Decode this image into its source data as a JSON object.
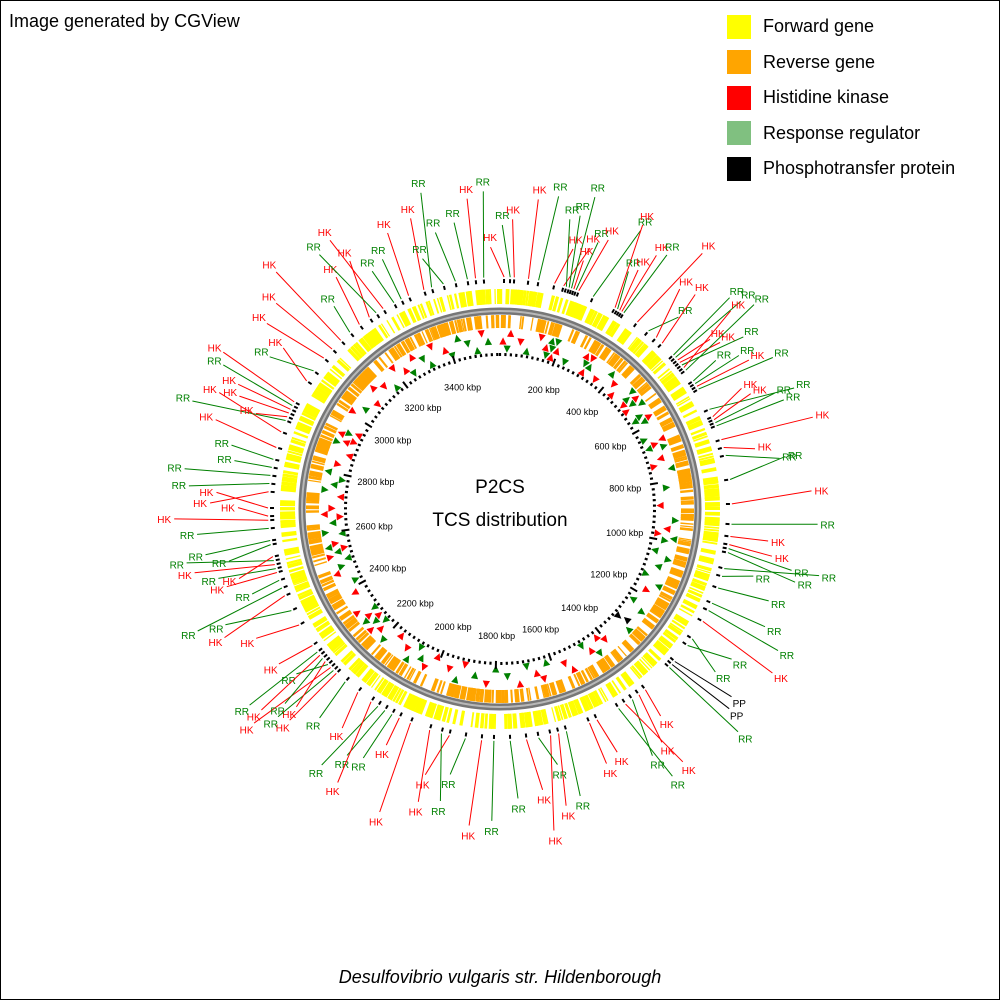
{
  "header": {
    "credit": "Image generated by CGView"
  },
  "legend": [
    {
      "label": "Forward gene",
      "color": "#ffff00"
    },
    {
      "label": "Reverse gene",
      "color": "#ffa500"
    },
    {
      "label": "Histidine kinase",
      "color": "#ff0000"
    },
    {
      "label": "Response regulator",
      "color": "#80c080"
    },
    {
      "label": "Phosphotransfer protein",
      "color": "#000000"
    }
  ],
  "center": {
    "line1": "P2CS",
    "line2": "TCS distribution"
  },
  "footer": {
    "organism": "Desulfovibrio vulgaris str. Hildenborough"
  },
  "map": {
    "genome_length_kbp": 3570,
    "scale_labels": [
      "200 kbp",
      "400 kbp",
      "600 kbp",
      "800 kbp",
      "1000 kbp",
      "1200 kbp",
      "1400 kbp",
      "1600 kbp",
      "1800 kbp",
      "2000 kbp",
      "2200 kbp",
      "2400 kbp",
      "2600 kbp",
      "2800 kbp",
      "3000 kbp",
      "3200 kbp",
      "3400 kbp"
    ],
    "colors": {
      "forward": "#ffff00",
      "reverse": "#ffa500",
      "hk": "#ff0000",
      "rr": "#008000",
      "pp": "#000000",
      "backbone": "#808080"
    },
    "features": [
      {
        "pos": 10,
        "type": "HK"
      },
      {
        "pos": 25,
        "type": "RR"
      },
      {
        "pos": 35,
        "type": "HK"
      },
      {
        "pos": 70,
        "type": "HK"
      },
      {
        "pos": 95,
        "type": "RR"
      },
      {
        "pos": 135,
        "type": "HK"
      },
      {
        "pos": 158,
        "type": "HK"
      },
      {
        "pos": 165,
        "type": "RR"
      },
      {
        "pos": 172,
        "type": "RR"
      },
      {
        "pos": 178,
        "type": "RR"
      },
      {
        "pos": 184,
        "type": "HK"
      },
      {
        "pos": 190,
        "type": "RR"
      },
      {
        "pos": 197,
        "type": "HK"
      },
      {
        "pos": 235,
        "type": "RR"
      },
      {
        "pos": 295,
        "type": "HK"
      },
      {
        "pos": 302,
        "type": "RR"
      },
      {
        "pos": 308,
        "type": "HK"
      },
      {
        "pos": 314,
        "type": "HK"
      },
      {
        "pos": 320,
        "type": "RR"
      },
      {
        "pos": 360,
        "type": "HK"
      },
      {
        "pos": 395,
        "type": "RR"
      },
      {
        "pos": 420,
        "type": "HK"
      },
      {
        "pos": 440,
        "type": "HK"
      },
      {
        "pos": 480,
        "type": "RR"
      },
      {
        "pos": 488,
        "type": "RR"
      },
      {
        "pos": 496,
        "type": "HK"
      },
      {
        "pos": 504,
        "type": "HK"
      },
      {
        "pos": 512,
        "type": "RR"
      },
      {
        "pos": 520,
        "type": "HK"
      },
      {
        "pos": 528,
        "type": "RR"
      },
      {
        "pos": 560,
        "type": "RR"
      },
      {
        "pos": 568,
        "type": "RR"
      },
      {
        "pos": 576,
        "type": "HK"
      },
      {
        "pos": 584,
        "type": "RR"
      },
      {
        "pos": 640,
        "type": "RR"
      },
      {
        "pos": 660,
        "type": "HK"
      },
      {
        "pos": 668,
        "type": "HK"
      },
      {
        "pos": 676,
        "type": "RR"
      },
      {
        "pos": 684,
        "type": "RR"
      },
      {
        "pos": 720,
        "type": "HK"
      },
      {
        "pos": 740,
        "type": "HK"
      },
      {
        "pos": 760,
        "type": "RR"
      },
      {
        "pos": 820,
        "type": "RR"
      },
      {
        "pos": 880,
        "type": "HK"
      },
      {
        "pos": 930,
        "type": "RR"
      },
      {
        "pos": 960,
        "type": "HK"
      },
      {
        "pos": 980,
        "type": "HK"
      },
      {
        "pos": 990,
        "type": "RR"
      },
      {
        "pos": 1000,
        "type": "RR"
      },
      {
        "pos": 1040,
        "type": "RR"
      },
      {
        "pos": 1060,
        "type": "RR"
      },
      {
        "pos": 1090,
        "type": "RR"
      },
      {
        "pos": 1130,
        "type": "RR"
      },
      {
        "pos": 1150,
        "type": "RR"
      },
      {
        "pos": 1180,
        "type": "HK"
      },
      {
        "pos": 1230,
        "type": "RR"
      },
      {
        "pos": 1250,
        "type": "RR"
      },
      {
        "pos": 1300,
        "type": "PP"
      },
      {
        "pos": 1310,
        "type": "PP"
      },
      {
        "pos": 1320,
        "type": "RR"
      },
      {
        "pos": 1400,
        "type": "HK"
      },
      {
        "pos": 1420,
        "type": "HK"
      },
      {
        "pos": 1440,
        "type": "RR"
      },
      {
        "pos": 1460,
        "type": "HK"
      },
      {
        "pos": 1480,
        "type": "RR"
      },
      {
        "pos": 1540,
        "type": "HK"
      },
      {
        "pos": 1560,
        "type": "HK"
      },
      {
        "pos": 1620,
        "type": "RR"
      },
      {
        "pos": 1640,
        "type": "HK"
      },
      {
        "pos": 1660,
        "type": "HK"
      },
      {
        "pos": 1690,
        "type": "RR"
      },
      {
        "pos": 1720,
        "type": "HK"
      },
      {
        "pos": 1760,
        "type": "RR"
      },
      {
        "pos": 1800,
        "type": "RR"
      },
      {
        "pos": 1830,
        "type": "HK"
      },
      {
        "pos": 1870,
        "type": "RR"
      },
      {
        "pos": 1910,
        "type": "HK"
      },
      {
        "pos": 1930,
        "type": "RR"
      },
      {
        "pos": 1960,
        "type": "HK"
      },
      {
        "pos": 2010,
        "type": "HK"
      },
      {
        "pos": 2040,
        "type": "HK"
      },
      {
        "pos": 2060,
        "type": "RR"
      },
      {
        "pos": 2080,
        "type": "RR"
      },
      {
        "pos": 2100,
        "type": "RR"
      },
      {
        "pos": 2120,
        "type": "HK"
      },
      {
        "pos": 2160,
        "type": "HK"
      },
      {
        "pos": 2200,
        "type": "RR"
      },
      {
        "pos": 2230,
        "type": "HK"
      },
      {
        "pos": 2240,
        "type": "RR"
      },
      {
        "pos": 2250,
        "type": "HK"
      },
      {
        "pos": 2260,
        "type": "RR"
      },
      {
        "pos": 2270,
        "type": "HK"
      },
      {
        "pos": 2280,
        "type": "RR"
      },
      {
        "pos": 2290,
        "type": "HK"
      },
      {
        "pos": 2300,
        "type": "RR"
      },
      {
        "pos": 2320,
        "type": "HK"
      },
      {
        "pos": 2380,
        "type": "HK"
      },
      {
        "pos": 2420,
        "type": "RR"
      },
      {
        "pos": 2460,
        "type": "HK"
      },
      {
        "pos": 2480,
        "type": "RR"
      },
      {
        "pos": 2500,
        "type": "RR"
      },
      {
        "pos": 2520,
        "type": "HK"
      },
      {
        "pos": 2530,
        "type": "RR"
      },
      {
        "pos": 2540,
        "type": "HK"
      },
      {
        "pos": 2550,
        "type": "RR"
      },
      {
        "pos": 2560,
        "type": "HK"
      },
      {
        "pos": 2590,
        "type": "RR"
      },
      {
        "pos": 2600,
        "type": "RR"
      },
      {
        "pos": 2630,
        "type": "RR"
      },
      {
        "pos": 2650,
        "type": "HK"
      },
      {
        "pos": 2660,
        "type": "HK"
      },
      {
        "pos": 2680,
        "type": "HK"
      },
      {
        "pos": 2720,
        "type": "HK"
      },
      {
        "pos": 2740,
        "type": "RR"
      },
      {
        "pos": 2760,
        "type": "RR"
      },
      {
        "pos": 2780,
        "type": "RR"
      },
      {
        "pos": 2800,
        "type": "RR"
      },
      {
        "pos": 2830,
        "type": "HK"
      },
      {
        "pos": 2870,
        "type": "HK"
      },
      {
        "pos": 2900,
        "type": "RR"
      },
      {
        "pos": 2910,
        "type": "HK"
      },
      {
        "pos": 2920,
        "type": "HK"
      },
      {
        "pos": 2930,
        "type": "HK"
      },
      {
        "pos": 2940,
        "type": "RR"
      },
      {
        "pos": 2950,
        "type": "HK"
      },
      {
        "pos": 3010,
        "type": "HK"
      },
      {
        "pos": 3040,
        "type": "RR"
      },
      {
        "pos": 3080,
        "type": "HK"
      },
      {
        "pos": 3110,
        "type": "HK"
      },
      {
        "pos": 3140,
        "type": "HK"
      },
      {
        "pos": 3170,
        "type": "RR"
      },
      {
        "pos": 3200,
        "type": "HK"
      },
      {
        "pos": 3230,
        "type": "HK"
      },
      {
        "pos": 3250,
        "type": "RR"
      },
      {
        "pos": 3270,
        "type": "HK"
      },
      {
        "pos": 3300,
        "type": "RR"
      },
      {
        "pos": 3320,
        "type": "RR"
      },
      {
        "pos": 3340,
        "type": "HK"
      },
      {
        "pos": 3380,
        "type": "HK"
      },
      {
        "pos": 3400,
        "type": "RR"
      },
      {
        "pos": 3430,
        "type": "RR"
      },
      {
        "pos": 3460,
        "type": "RR"
      },
      {
        "pos": 3490,
        "type": "RR"
      },
      {
        "pos": 3510,
        "type": "HK"
      },
      {
        "pos": 3530,
        "type": "RR"
      }
    ]
  }
}
